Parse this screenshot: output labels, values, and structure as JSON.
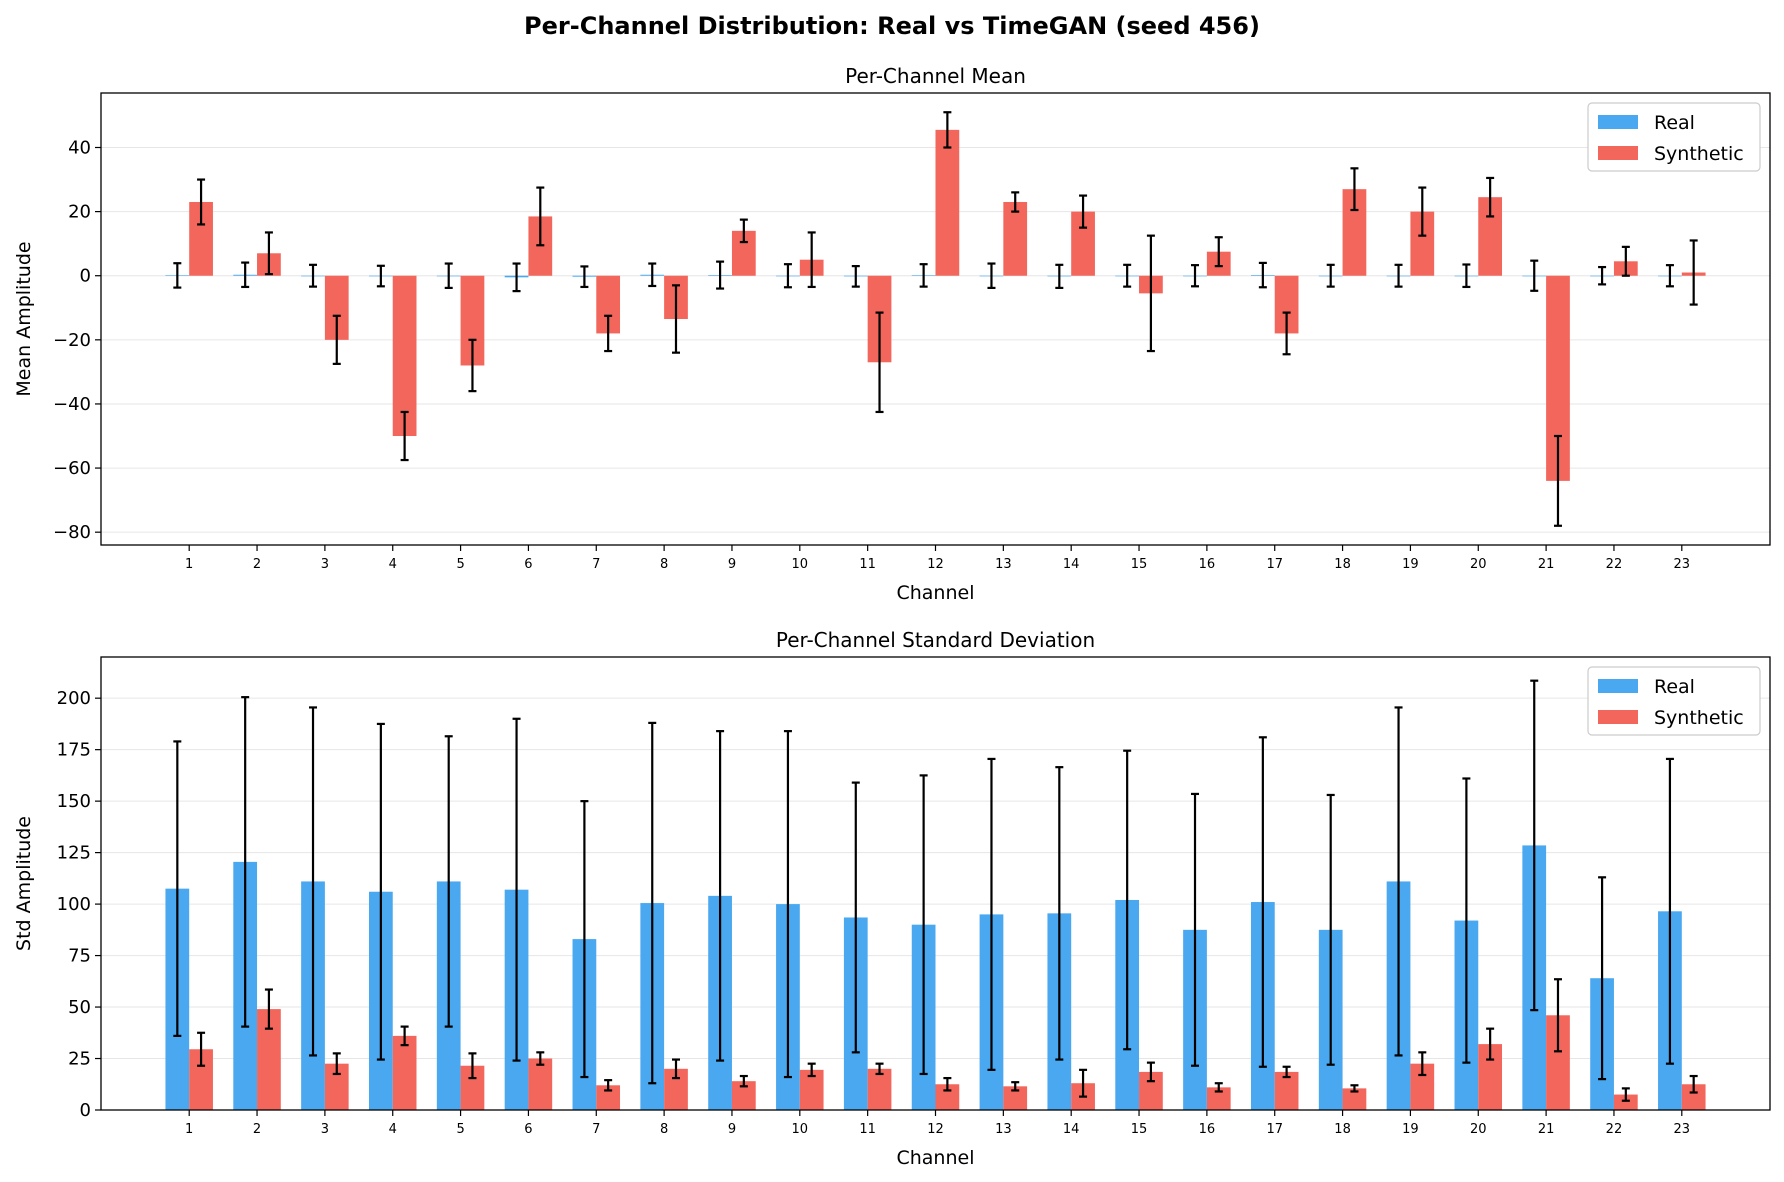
{
  "figure": {
    "suptitle": "Per-Channel Distribution: Real vs TimeGAN (seed 456)"
  },
  "colors": {
    "real": "#4aa8f0",
    "synthetic": "#f2665c",
    "error": "#000000",
    "grid": "#e6e6e6"
  },
  "chart_data": [
    {
      "type": "bar",
      "title": "Per-Channel Mean",
      "xlabel": "Channel",
      "ylabel": "Mean Amplitude",
      "ylim": [
        -84,
        57
      ],
      "yticks": [
        -80,
        -60,
        -40,
        -20,
        0,
        20,
        40
      ],
      "ytick_labels": [
        "−80",
        "−60",
        "−40",
        "−20",
        "0",
        "20",
        "40"
      ],
      "grid": "y",
      "legend": "top-right",
      "categories": [
        "1",
        "2",
        "3",
        "4",
        "5",
        "6",
        "7",
        "8",
        "9",
        "10",
        "11",
        "12",
        "13",
        "14",
        "15",
        "16",
        "17",
        "18",
        "19",
        "20",
        "21",
        "22",
        "23"
      ],
      "series": [
        {
          "name": "Real",
          "color_key": "real",
          "values": [
            0.1,
            0.3,
            0.0,
            -0.1,
            0.0,
            -0.5,
            -0.3,
            0.3,
            0.2,
            0.0,
            -0.2,
            0.1,
            0.0,
            -0.2,
            0.0,
            0.0,
            0.2,
            0.0,
            0.0,
            0.0,
            0.0,
            0.0,
            0.0
          ],
          "errors": [
            3.8,
            3.8,
            3.4,
            3.2,
            3.8,
            4.3,
            3.2,
            3.5,
            4.2,
            3.6,
            3.2,
            3.5,
            3.8,
            3.6,
            3.4,
            3.3,
            3.8,
            3.4,
            3.4,
            3.5,
            4.7,
            2.7,
            3.3
          ]
        },
        {
          "name": "Synthetic",
          "color_key": "synthetic",
          "values": [
            23,
            7,
            -20,
            -50,
            -28,
            18.5,
            -18,
            -13.5,
            14,
            5,
            -27,
            45.5,
            23,
            20,
            -5.5,
            7.5,
            -18,
            27,
            20,
            24.5,
            -64,
            4.5,
            1
          ],
          "errors": [
            7,
            6.5,
            7.5,
            7.5,
            8,
            9,
            5.5,
            10.5,
            3.5,
            8.5,
            15.5,
            5.5,
            3,
            5,
            18,
            4.5,
            6.5,
            6.5,
            7.5,
            6,
            14,
            4.5,
            10
          ]
        }
      ]
    },
    {
      "type": "bar",
      "title": "Per-Channel Standard Deviation",
      "xlabel": "Channel",
      "ylabel": "Std Amplitude",
      "ylim": [
        0,
        220
      ],
      "yticks": [
        0,
        25,
        50,
        75,
        100,
        125,
        150,
        175,
        200
      ],
      "ytick_labels": [
        "0",
        "25",
        "50",
        "75",
        "100",
        "125",
        "150",
        "175",
        "200"
      ],
      "grid": "y",
      "legend": "top-right",
      "categories": [
        "1",
        "2",
        "3",
        "4",
        "5",
        "6",
        "7",
        "8",
        "9",
        "10",
        "11",
        "12",
        "13",
        "14",
        "15",
        "16",
        "17",
        "18",
        "19",
        "20",
        "21",
        "22",
        "23"
      ],
      "series": [
        {
          "name": "Real",
          "color_key": "real",
          "values": [
            107.5,
            120.5,
            111,
            106,
            111,
            107,
            83,
            100.5,
            104,
            100,
            93.5,
            90,
            95,
            95.5,
            102,
            87.5,
            101,
            87.5,
            111,
            92,
            128.5,
            64,
            96.5
          ],
          "errors": [
            71.5,
            80,
            84.5,
            81.5,
            70.5,
            83,
            67,
            87.5,
            80,
            84,
            65.5,
            72.5,
            75.5,
            71,
            72.5,
            66,
            80,
            65.5,
            84.5,
            69,
            80,
            49,
            74
          ]
        },
        {
          "name": "Synthetic",
          "color_key": "synthetic",
          "values": [
            29.5,
            49,
            22.5,
            36,
            21.5,
            25,
            12,
            20,
            14,
            19.5,
            20,
            12.5,
            11.5,
            13,
            18.5,
            11,
            18.5,
            10.5,
            22.5,
            32,
            46,
            7.5,
            12.5
          ],
          "errors": [
            8,
            9.5,
            5,
            4.5,
            6,
            3,
            2.5,
            4.5,
            2.5,
            3,
            2.5,
            3,
            2,
            6.5,
            4.5,
            2,
            2.5,
            1.5,
            5.5,
            7.5,
            17.5,
            3,
            4
          ]
        }
      ]
    }
  ]
}
